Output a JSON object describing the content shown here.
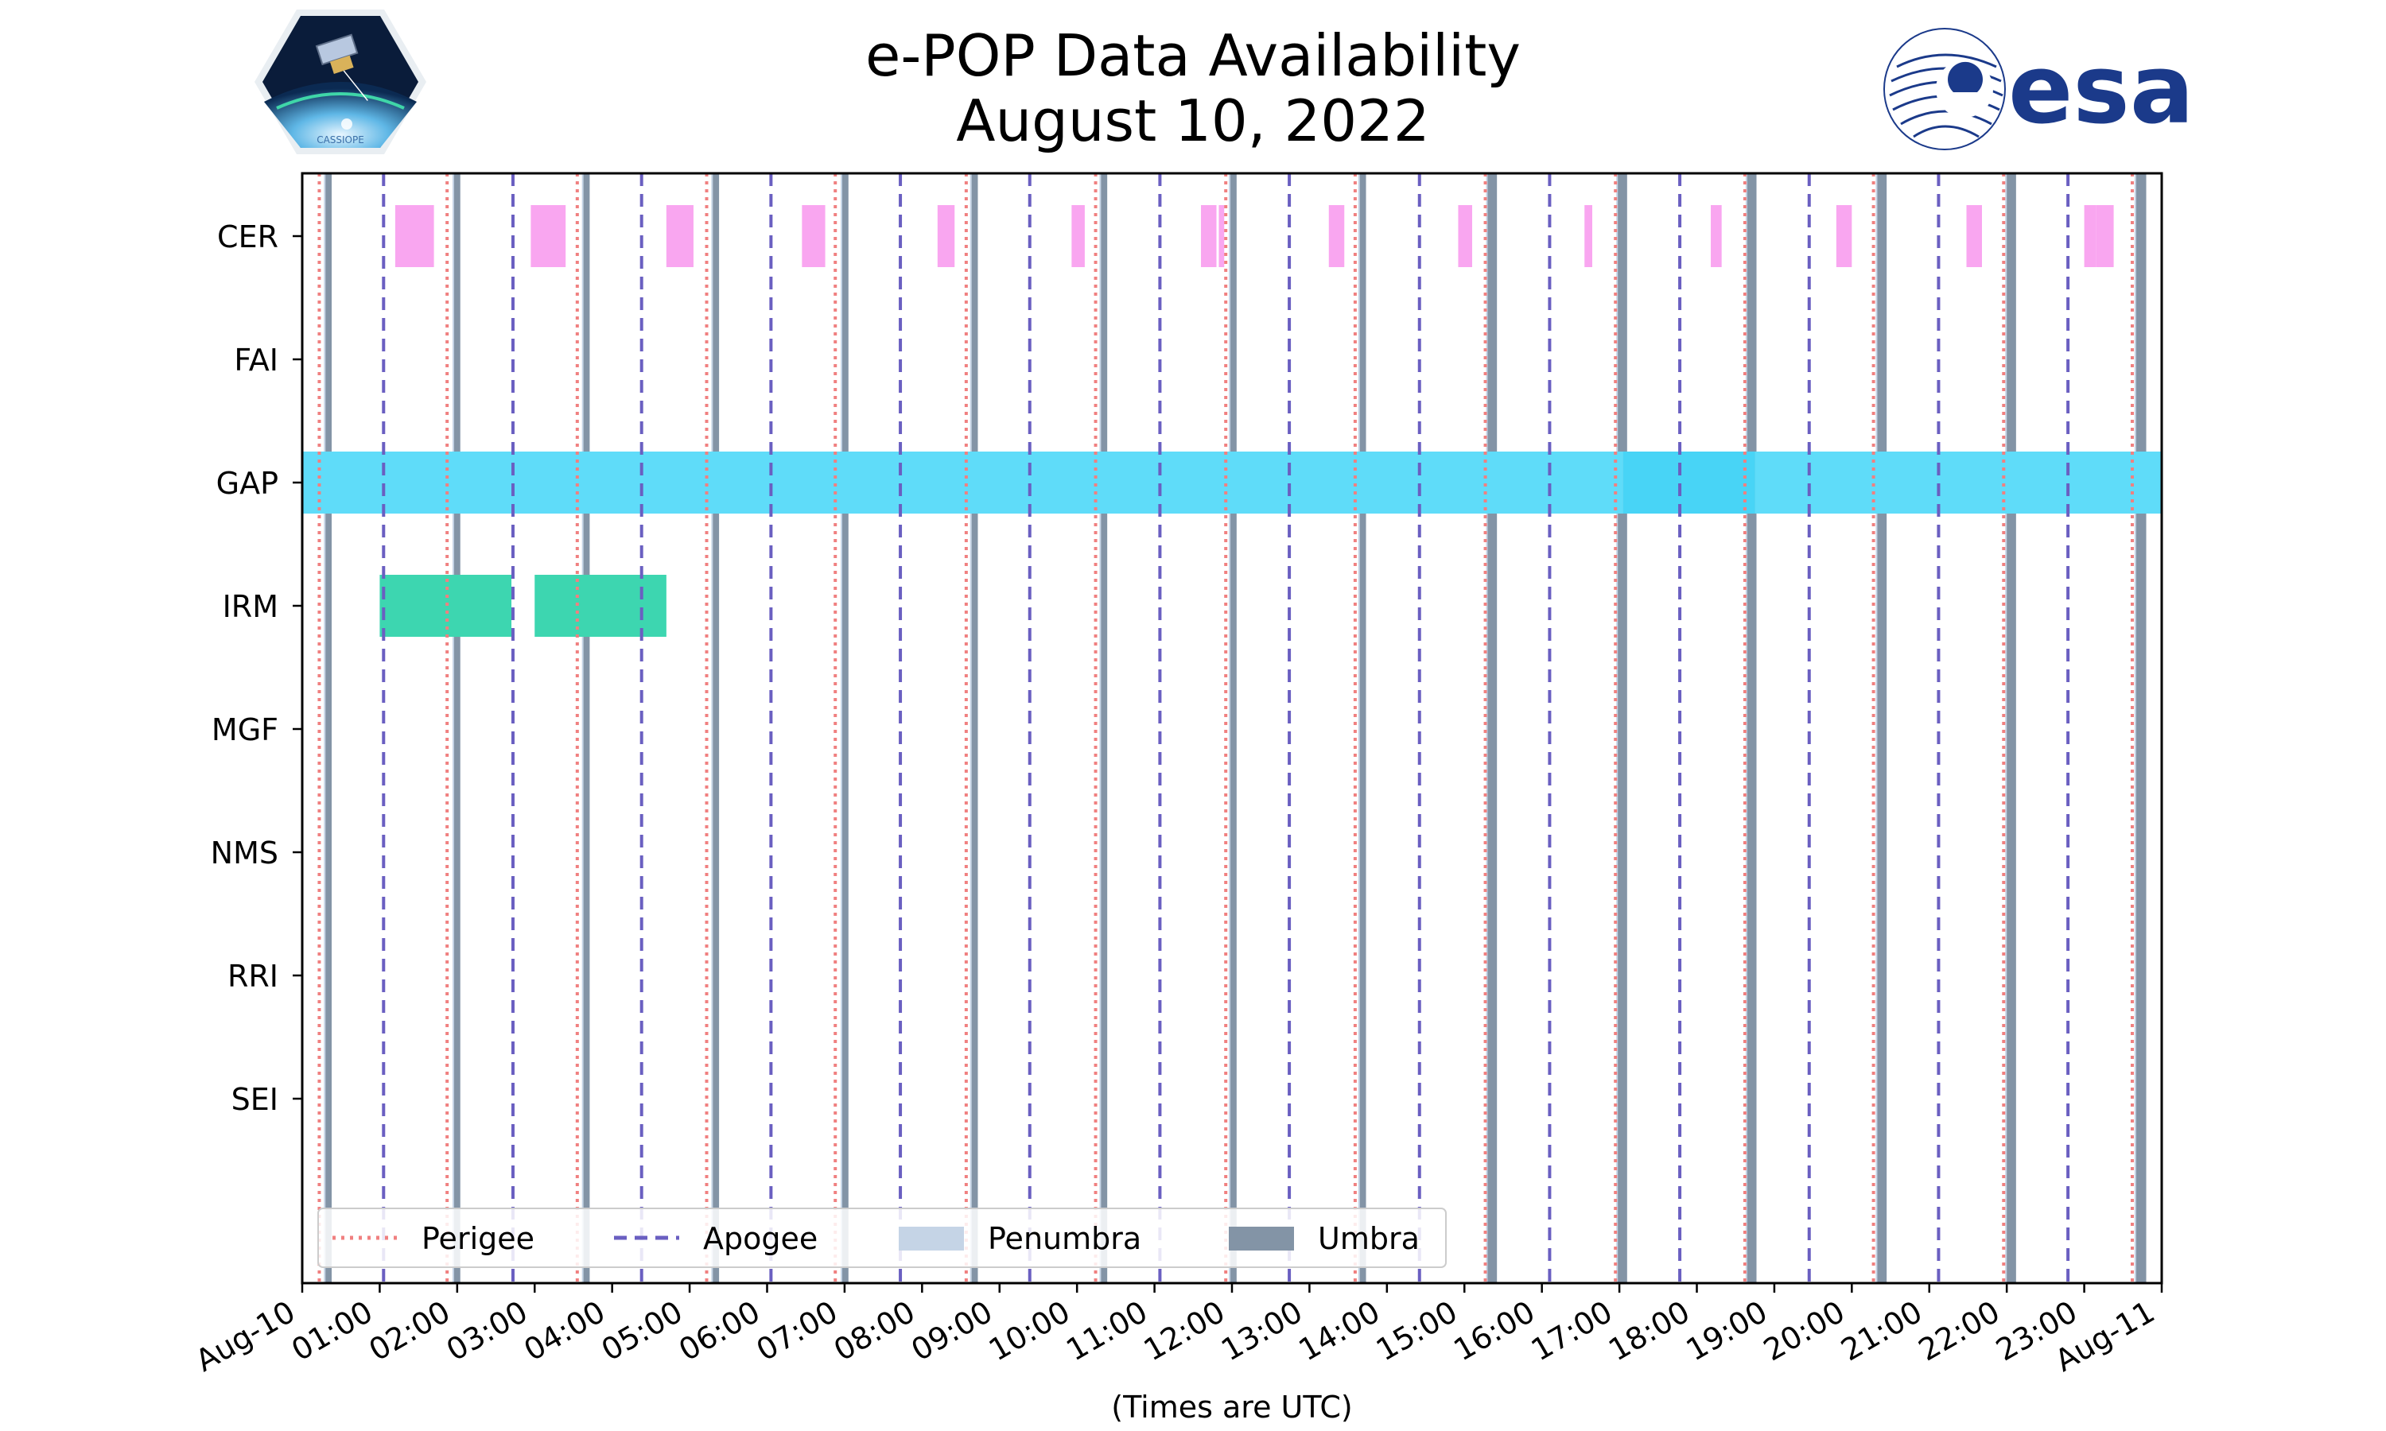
{
  "chart_data": {
    "type": "timeline",
    "title": "e-POP Data Availability",
    "subtitle": "August 10, 2022",
    "xlabel": "(Times are UTC)",
    "x_range_hours": [
      0,
      24
    ],
    "x_tick_labels": [
      "Aug-10",
      "01:00",
      "02:00",
      "03:00",
      "04:00",
      "05:00",
      "06:00",
      "07:00",
      "08:00",
      "09:00",
      "10:00",
      "11:00",
      "12:00",
      "13:00",
      "14:00",
      "15:00",
      "16:00",
      "17:00",
      "18:00",
      "19:00",
      "20:00",
      "21:00",
      "22:00",
      "23:00",
      "Aug-11"
    ],
    "instruments": [
      "CER",
      "FAI",
      "GAP",
      "IRM",
      "MGF",
      "NMS",
      "RRI",
      "SEI"
    ],
    "perigee_hours": [
      0.22,
      1.87,
      3.55,
      5.22,
      6.88,
      8.57,
      10.24,
      11.92,
      13.59,
      15.27,
      16.95,
      18.62,
      20.28,
      21.96,
      23.62
    ],
    "apogee_hours": [
      1.05,
      2.72,
      4.38,
      6.05,
      7.72,
      9.39,
      11.07,
      12.74,
      14.42,
      16.1,
      17.78,
      19.45,
      21.12,
      22.79
    ],
    "umbra_hours": [
      [
        0.3,
        0.38
      ],
      [
        1.96,
        2.04
      ],
      [
        3.63,
        3.71
      ],
      [
        5.3,
        5.38
      ],
      [
        6.97,
        7.05
      ],
      [
        8.64,
        8.72
      ],
      [
        10.31,
        10.39
      ],
      [
        11.98,
        12.06
      ],
      [
        13.65,
        13.73
      ],
      [
        15.3,
        15.42
      ],
      [
        16.98,
        17.1
      ],
      [
        18.65,
        18.77
      ],
      [
        20.33,
        20.45
      ],
      [
        22.0,
        22.12
      ],
      [
        23.67,
        23.8
      ]
    ],
    "penumbra_hours": [
      [
        0.28,
        0.3
      ],
      [
        1.94,
        1.96
      ],
      [
        3.61,
        3.63
      ],
      [
        5.28,
        5.3
      ],
      [
        6.95,
        6.97
      ],
      [
        8.62,
        8.64
      ],
      [
        10.29,
        10.31
      ],
      [
        11.96,
        11.98
      ],
      [
        13.63,
        13.65
      ],
      [
        15.28,
        15.3
      ],
      [
        16.96,
        16.98
      ],
      [
        18.63,
        18.65
      ],
      [
        20.31,
        20.33
      ],
      [
        21.98,
        22.0
      ],
      [
        23.65,
        23.67
      ]
    ],
    "data_segments": {
      "CER": [
        [
          1.2,
          1.7
        ],
        [
          2.95,
          3.4
        ],
        [
          4.7,
          5.05
        ],
        [
          6.45,
          6.75
        ],
        [
          8.2,
          8.42
        ],
        [
          9.93,
          10.1
        ],
        [
          11.6,
          11.8
        ],
        [
          11.83,
          11.9
        ],
        [
          13.25,
          13.45
        ],
        [
          14.92,
          15.1
        ],
        [
          16.55,
          16.65
        ],
        [
          18.18,
          18.32
        ],
        [
          19.8,
          20.0
        ],
        [
          21.48,
          21.68
        ],
        [
          23.0,
          23.15
        ],
        [
          23.15,
          23.38
        ]
      ],
      "FAI": [],
      "GAP": [
        [
          0.0,
          17.05
        ],
        [
          17.05,
          18.75
        ],
        [
          18.75,
          24.0
        ]
      ],
      "IRM": [
        [
          1.0,
          2.7
        ],
        [
          3.0,
          4.7
        ]
      ],
      "MGF": [],
      "NMS": [],
      "RRI": [],
      "SEI": []
    },
    "colors": {
      "CER": "#f9a6f0",
      "GAP": "#5fdcf9",
      "GAP_highlight": "#48d4f6",
      "IRM": "#3dd6b0",
      "perigee": "#f08080",
      "apogee": "#6a5fc1",
      "penumbra": "#c5d4e6",
      "umbra": "#8394a6"
    },
    "legend": {
      "position": "lower-left",
      "entries": [
        "Perigee",
        "Apogee",
        "Penumbra",
        "Umbra"
      ]
    }
  },
  "logos": {
    "left_text": "CASSIOPE",
    "right_text": "esa"
  }
}
